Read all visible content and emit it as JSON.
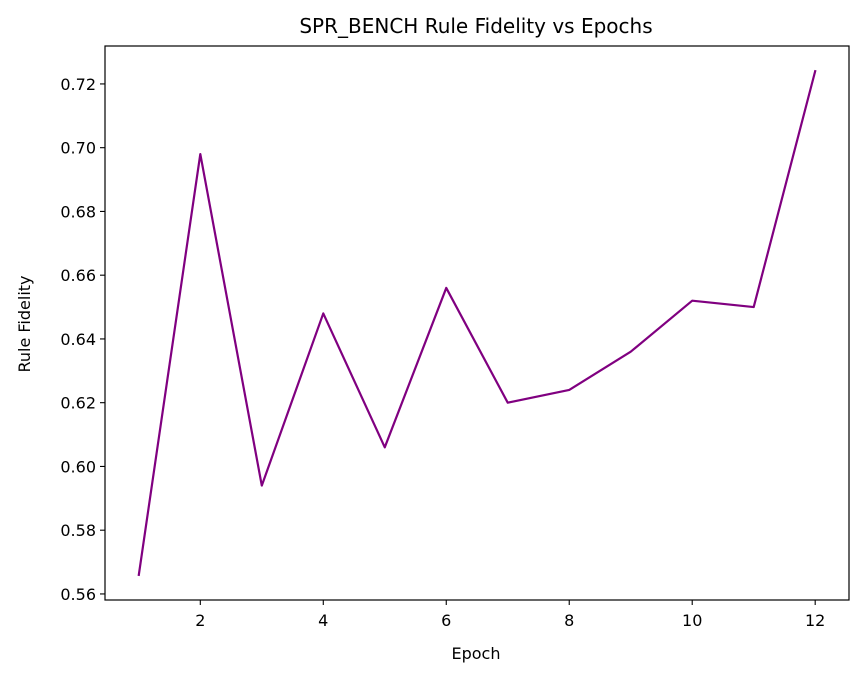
{
  "chart_data": {
    "type": "line",
    "title": "SPR_BENCH Rule Fidelity vs Epochs",
    "xlabel": "Epoch",
    "ylabel": "Rule Fidelity",
    "xlim": [
      0.45,
      12.55
    ],
    "ylim": [
      0.5581,
      0.7319
    ],
    "xticks": [
      2,
      4,
      6,
      8,
      10,
      12
    ],
    "xtick_labels": [
      "2",
      "4",
      "6",
      "8",
      "10",
      "12"
    ],
    "yticks": [
      0.56,
      0.58,
      0.6,
      0.62,
      0.64,
      0.66,
      0.68,
      0.7,
      0.72
    ],
    "ytick_labels": [
      "0.56",
      "0.58",
      "0.60",
      "0.62",
      "0.64",
      "0.66",
      "0.68",
      "0.70",
      "0.72"
    ],
    "grid": false,
    "series": [
      {
        "name": "Rule Fidelity",
        "color": "#800080",
        "x": [
          1,
          2,
          3,
          4,
          5,
          6,
          7,
          8,
          9,
          10,
          11,
          12
        ],
        "values": [
          0.566,
          0.698,
          0.594,
          0.648,
          0.606,
          0.656,
          0.62,
          0.624,
          0.636,
          0.652,
          0.65,
          0.724
        ]
      }
    ]
  }
}
